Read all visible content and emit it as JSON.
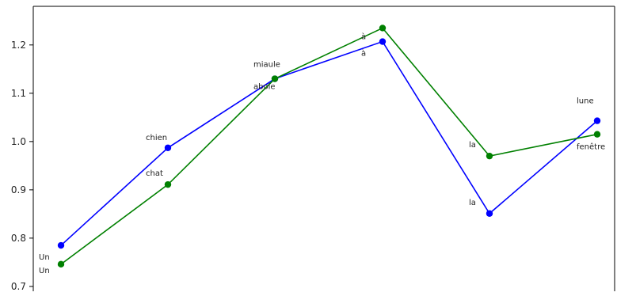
{
  "chart_data": {
    "type": "line",
    "x": [
      0,
      1,
      2,
      3,
      4,
      5
    ],
    "ylim": [
      0.69,
      1.28
    ],
    "yticks": [
      0.7,
      0.8,
      0.9,
      1.0,
      1.1,
      1.2
    ],
    "ytick_labels": [
      "0.7",
      "0.8",
      "0.9",
      "1.0",
      "1.1",
      "1.2"
    ],
    "grid": false,
    "series": [
      {
        "color": "#0000ff",
        "values": [
          0.785,
          0.987,
          1.13,
          1.207,
          0.851,
          1.043
        ],
        "point_labels": [
          "Un",
          "chien",
          "miaule",
          "à",
          "la",
          "lune"
        ]
      },
      {
        "color": "#008000",
        "values": [
          0.746,
          0.911,
          1.13,
          1.235,
          0.97,
          1.015
        ],
        "point_labels": [
          "Un",
          "chat",
          "aboie",
          "à",
          "la",
          "fenêtre"
        ]
      }
    ]
  }
}
